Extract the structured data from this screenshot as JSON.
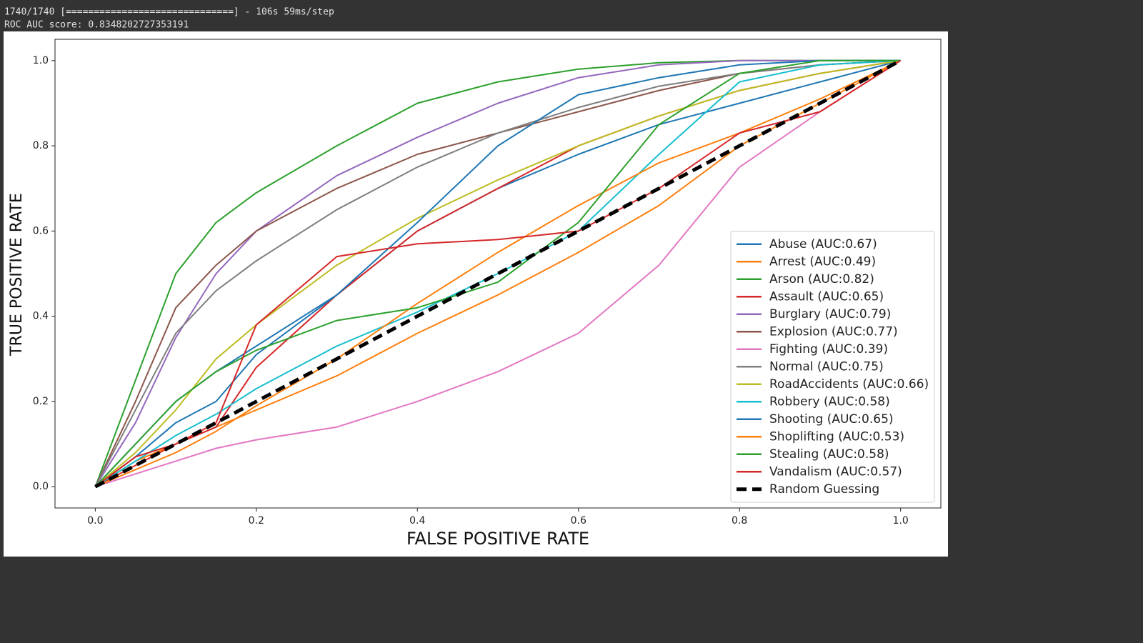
{
  "console": {
    "lines": [
      "1740/1740 [==============================] - 106s 59ms/step",
      "ROC AUC score: 0.8348202727353191"
    ]
  },
  "chart_data": {
    "type": "line",
    "x_label": "FALSE POSITIVE RATE",
    "y_label": "TRUE POSITIVE RATE",
    "x": [
      0,
      0.05,
      0.1,
      0.15,
      0.2,
      0.3,
      0.4,
      0.5,
      0.6,
      0.7,
      0.8,
      0.9,
      1
    ],
    "xlim": [
      -0.05,
      1.05
    ],
    "ylim": [
      -0.05,
      1.05
    ],
    "xticks": [
      {
        "value": 0,
        "label": "0.0"
      },
      0.2,
      0.4,
      0.6,
      0.8,
      {
        "value": 1,
        "label": "1.0"
      }
    ],
    "yticks": [
      {
        "value": 0,
        "label": "0.0"
      },
      0.2,
      0.4,
      0.6,
      0.8,
      {
        "value": 1,
        "label": "1.0"
      }
    ],
    "grid": false,
    "legend": "lower right",
    "series": [
      {
        "name": "Abuse (AUC:0.67)",
        "color": "#1f77b4",
        "values": [
          0,
          0.1,
          0.2,
          0.27,
          0.33,
          0.45,
          0.6,
          0.7,
          0.78,
          0.85,
          0.9,
          0.95,
          1
        ]
      },
      {
        "name": "Arrest (AUC:0.49)",
        "color": "#ff7f0e",
        "values": [
          0,
          0.06,
          0.1,
          0.14,
          0.18,
          0.26,
          0.36,
          0.45,
          0.55,
          0.66,
          0.8,
          0.9,
          1
        ]
      },
      {
        "name": "Arson (AUC:0.82)",
        "color": "#2ca02c",
        "values": [
          0,
          0.25,
          0.5,
          0.62,
          0.69,
          0.8,
          0.9,
          0.95,
          0.98,
          0.995,
          1,
          1,
          1
        ]
      },
      {
        "name": "Assault (AUC:0.65)",
        "color": "#d62728",
        "values": [
          0,
          0.05,
          0.1,
          0.14,
          0.28,
          0.45,
          0.6,
          0.7,
          0.8,
          0.87,
          0.93,
          0.97,
          1
        ]
      },
      {
        "name": "Burglary (AUC:0.79)",
        "color": "#9467bd",
        "values": [
          0,
          0.15,
          0.35,
          0.5,
          0.6,
          0.73,
          0.82,
          0.9,
          0.96,
          0.99,
          1,
          1,
          1
        ]
      },
      {
        "name": "Explosion (AUC:0.77)",
        "color": "#8c564b",
        "values": [
          0,
          0.2,
          0.42,
          0.52,
          0.6,
          0.7,
          0.78,
          0.83,
          0.88,
          0.93,
          0.97,
          0.99,
          1
        ]
      },
      {
        "name": "Fighting (AUC:0.39)",
        "color": "#e377c2",
        "values": [
          0,
          0.03,
          0.06,
          0.09,
          0.11,
          0.14,
          0.2,
          0.27,
          0.36,
          0.52,
          0.75,
          0.88,
          1
        ]
      },
      {
        "name": "Normal (AUC:0.75)",
        "color": "#7f7f7f",
        "values": [
          0,
          0.18,
          0.36,
          0.46,
          0.53,
          0.65,
          0.75,
          0.83,
          0.89,
          0.94,
          0.97,
          0.99,
          1
        ]
      },
      {
        "name": "RoadAccidents (AUC:0.66)",
        "color": "#bcbd22",
        "values": [
          0,
          0.08,
          0.18,
          0.3,
          0.38,
          0.52,
          0.63,
          0.72,
          0.8,
          0.87,
          0.93,
          0.97,
          1
        ]
      },
      {
        "name": "Robbery (AUC:0.58)",
        "color": "#17becf",
        "values": [
          0,
          0.06,
          0.12,
          0.17,
          0.23,
          0.33,
          0.41,
          0.5,
          0.6,
          0.78,
          0.95,
          0.99,
          1
        ]
      },
      {
        "name": "Shooting (AUC:0.65)",
        "color": "#1f77b4",
        "values": [
          0,
          0.07,
          0.15,
          0.2,
          0.31,
          0.45,
          0.62,
          0.8,
          0.92,
          0.96,
          0.99,
          1,
          1
        ]
      },
      {
        "name": "Shoplifting (AUC:0.53)",
        "color": "#ff7f0e",
        "values": [
          0,
          0.04,
          0.08,
          0.13,
          0.19,
          0.3,
          0.43,
          0.55,
          0.66,
          0.76,
          0.83,
          0.91,
          1
        ]
      },
      {
        "name": "Stealing (AUC:0.58)",
        "color": "#2ca02c",
        "values": [
          0,
          0.1,
          0.2,
          0.27,
          0.32,
          0.39,
          0.42,
          0.48,
          0.62,
          0.85,
          0.97,
          1,
          1
        ]
      },
      {
        "name": "Vandalism (AUC:0.57)",
        "color": "#d62728",
        "values": [
          0,
          0.07,
          0.1,
          0.15,
          0.38,
          0.54,
          0.57,
          0.58,
          0.6,
          0.7,
          0.83,
          0.88,
          1
        ]
      },
      {
        "name": "Random Guessing",
        "color": "#000000",
        "dashed": true,
        "values": [
          0,
          0.05,
          0.1,
          0.15,
          0.2,
          0.3,
          0.4,
          0.5,
          0.6,
          0.7,
          0.8,
          0.9,
          1
        ]
      }
    ]
  }
}
